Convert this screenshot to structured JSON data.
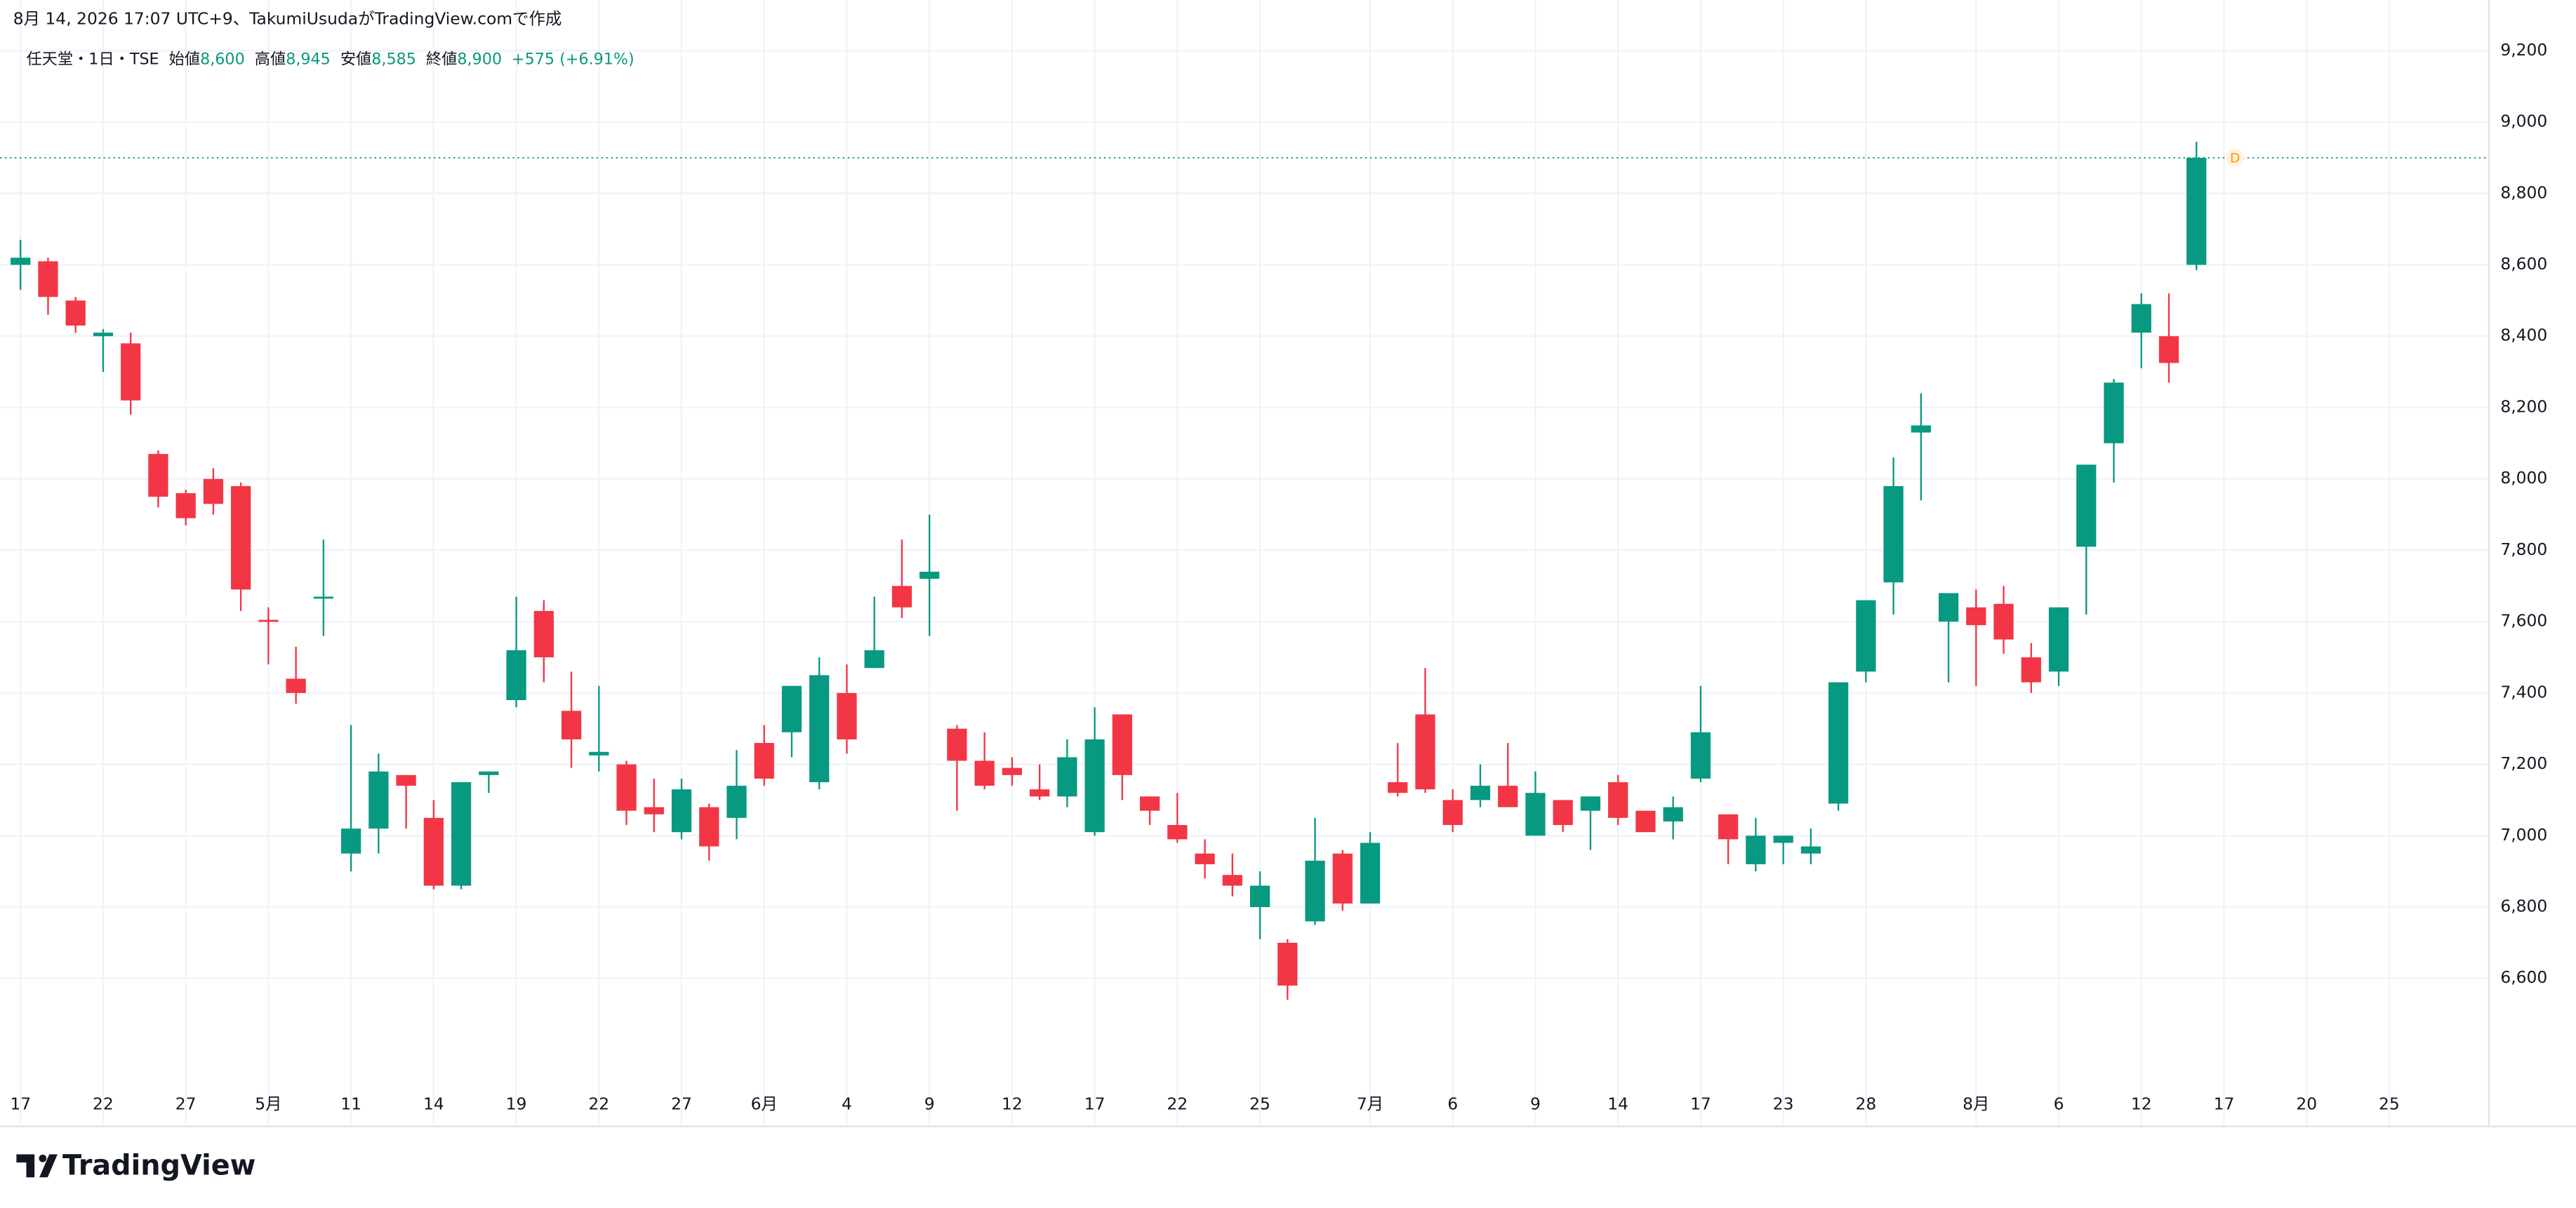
{
  "header": "8月 14, 2026 17:07 UTC+9、TakumiUsudaがTradingView.comで作成",
  "legend": {
    "symbol": "任天堂・1日・TSE",
    "items": [
      {
        "label": "始値",
        "value": "8,600"
      },
      {
        "label": "高値",
        "value": "8,945"
      },
      {
        "label": "安値",
        "value": "8,585"
      },
      {
        "label": "終値",
        "value": "8,900"
      }
    ],
    "change": "+575 (+6.91%)"
  },
  "logo": "TradingView",
  "chart_data": {
    "type": "candlestick",
    "grid": true,
    "up_color": "#089981",
    "down_color": "#f23645",
    "marker": "D",
    "categories": [
      "17",
      null,
      null,
      "22",
      null,
      null,
      "27",
      null,
      null,
      "5月",
      null,
      null,
      "11",
      null,
      null,
      "14",
      null,
      null,
      "19",
      null,
      null,
      "22",
      null,
      null,
      "27",
      null,
      null,
      "6月",
      null,
      null,
      "4",
      null,
      null,
      "9",
      null,
      null,
      "12",
      null,
      null,
      "17",
      null,
      null,
      "22",
      null,
      null,
      "25",
      null,
      null,
      null,
      "7月",
      null,
      null,
      "6",
      null,
      null,
      "9",
      null,
      null,
      "14",
      null,
      null,
      "17",
      null,
      null,
      "23",
      null,
      null,
      "28",
      null,
      null,
      null,
      "8月",
      null,
      null,
      "6",
      null,
      null,
      "12",
      null,
      null,
      "17",
      null,
      null,
      "20",
      null,
      null,
      "25",
      null,
      null,
      null
    ],
    "open": [
      8600,
      8610,
      8500,
      8400,
      8380,
      8070,
      7960,
      8000,
      7980,
      7605,
      7440,
      7665,
      6950,
      7020,
      7170,
      7050,
      6860,
      7170,
      7380,
      7630,
      7350,
      7225,
      7200,
      7080,
      7010,
      7080,
      7050,
      7260,
      7290,
      7150,
      7400,
      7470,
      7700,
      7720,
      7300,
      7210,
      7190,
      7130,
      7110,
      7010,
      7340,
      7110,
      7030,
      6950,
      6890,
      6800,
      6700,
      6760,
      6950,
      6810,
      7150,
      7340,
      7100,
      7100,
      7140,
      7000,
      7100,
      7070,
      7150,
      7070,
      7040,
      7160,
      7060,
      6920,
      6980,
      6950,
      7090,
      7460,
      7710,
      8130,
      7600,
      7640,
      7650,
      7500,
      7460,
      7810,
      8100,
      8410,
      8400,
      8600,
      null,
      null,
      null,
      null,
      null,
      null,
      null,
      null,
      null,
      null
    ],
    "high": [
      8670,
      8620,
      8510,
      8420,
      8410,
      8080,
      7970,
      8030,
      7990,
      7640,
      7530,
      7830,
      7310,
      7230,
      7170,
      7100,
      7150,
      7180,
      7670,
      7660,
      7460,
      7420,
      7210,
      7160,
      7160,
      7090,
      7240,
      7310,
      7420,
      7500,
      7480,
      7670,
      7830,
      7900,
      7310,
      7290,
      7220,
      7200,
      7270,
      7360,
      7340,
      7110,
      7120,
      6990,
      6950,
      6900,
      6710,
      7050,
      6960,
      7010,
      7260,
      7470,
      7130,
      7200,
      7260,
      7180,
      7100,
      7110,
      7170,
      7070,
      7110,
      7420,
      7060,
      7050,
      7000,
      7020,
      7430,
      7660,
      8060,
      8240,
      7680,
      7690,
      7700,
      7540,
      7640,
      8040,
      8280,
      8520,
      8520,
      8945,
      null,
      null,
      null,
      null,
      null,
      null,
      null,
      null,
      null,
      null
    ],
    "low": [
      8530,
      8460,
      8410,
      8300,
      8180,
      7920,
      7870,
      7900,
      7630,
      7480,
      7370,
      7560,
      6900,
      6950,
      7020,
      6850,
      6850,
      7120,
      7360,
      7430,
      7190,
      7180,
      7030,
      7010,
      6990,
      6930,
      6990,
      7140,
      7220,
      7130,
      7230,
      7470,
      7610,
      7560,
      7070,
      7130,
      7140,
      7100,
      7080,
      7000,
      7100,
      7030,
      6980,
      6880,
      6830,
      6710,
      6540,
      6750,
      6790,
      6810,
      7110,
      7120,
      7010,
      7080,
      7080,
      7000,
      7010,
      6960,
      7030,
      7010,
      6990,
      7150,
      6920,
      6900,
      6920,
      6920,
      7070,
      7430,
      7620,
      7940,
      7430,
      7420,
      7510,
      7400,
      7420,
      7620,
      7990,
      8310,
      8270,
      8585,
      null,
      null,
      null,
      null,
      null,
      null,
      null,
      null,
      null,
      null
    ],
    "close": [
      8620,
      8510,
      8430,
      8410,
      8220,
      7950,
      7890,
      7930,
      7690,
      7600,
      7400,
      7670,
      7020,
      7180,
      7140,
      6860,
      7150,
      7180,
      7520,
      7500,
      7270,
      7235,
      7070,
      7060,
      7130,
      6970,
      7140,
      7160,
      7420,
      7450,
      7270,
      7520,
      7640,
      7740,
      7210,
      7140,
      7170,
      7110,
      7220,
      7270,
      7170,
      7070,
      6990,
      6920,
      6860,
      6860,
      6580,
      6930,
      6810,
      6980,
      7120,
      7130,
      7030,
      7140,
      7080,
      7120,
      7030,
      7110,
      7050,
      7010,
      7080,
      7290,
      6990,
      7000,
      7000,
      6970,
      7430,
      7660,
      7980,
      8150,
      7680,
      7590,
      7550,
      7430,
      7640,
      8040,
      8270,
      8490,
      8325,
      8900,
      null,
      null,
      null,
      null,
      null,
      null,
      null,
      null,
      null,
      null
    ],
    "ylim": [
      6305,
      9241
    ],
    "yticks": [
      {
        "value": 6600,
        "label": "6,600"
      },
      {
        "value": 6800,
        "label": "6,800"
      },
      {
        "value": 7000,
        "label": "7,000"
      },
      {
        "value": 7200,
        "label": "7,200"
      },
      {
        "value": 7400,
        "label": "7,400"
      },
      {
        "value": 7600,
        "label": "7,600"
      },
      {
        "value": 7800,
        "label": "7,800"
      },
      {
        "value": 8000,
        "label": "8,000"
      },
      {
        "value": 8200,
        "label": "8,200"
      },
      {
        "value": 8400,
        "label": "8,400"
      },
      {
        "value": 8600,
        "label": "8,600"
      },
      {
        "value": 8800,
        "label": "8,800"
      },
      {
        "value": 9000,
        "label": "9,000"
      },
      {
        "value": 9200,
        "label": "9,200"
      }
    ]
  }
}
